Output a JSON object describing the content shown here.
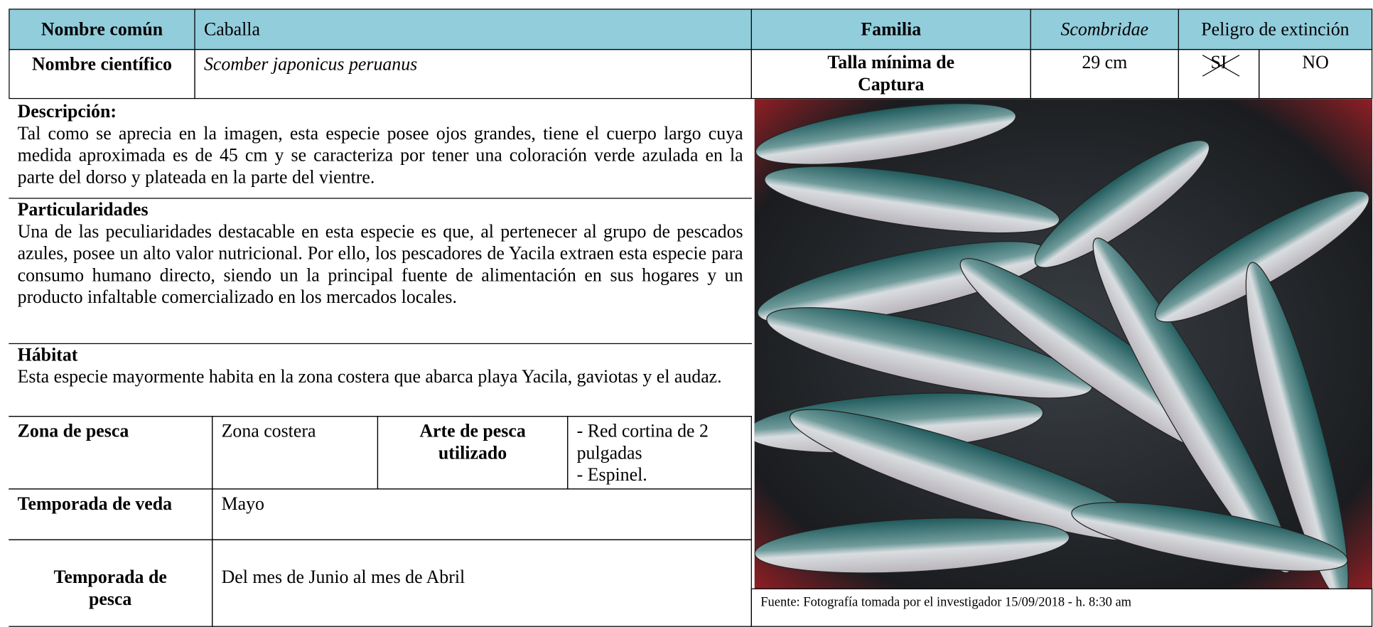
{
  "header": {
    "nombre_comun_label": "Nombre común",
    "nombre_comun": "Caballa",
    "familia_label": "Familia",
    "familia": "Scombridae",
    "peligro_label": "Peligro de extinción",
    "nombre_cientifico_label": "Nombre científico",
    "nombre_cientifico": "Scomber japonicus peruanus",
    "talla_label": "Talla mínima de Captura",
    "talla": "29 cm",
    "si": "SI",
    "no": "NO"
  },
  "sections": [
    {
      "title": "Descripción:",
      "text": "Tal como se aprecia en la imagen, esta especie posee ojos grandes, tiene el cuerpo largo cuya medida aproximada es de 45 cm y se caracteriza por tener una coloración verde azulada en la parte del dorso y  plateada en la parte del vientre."
    },
    {
      "title": "Particularidades",
      "text": "Una de las peculiaridades destacable en esta especie es que, al pertenecer al grupo de pescados azules, posee un alto valor nutricional. Por ello,  los pescadores de Yacila extraen esta especie para consumo humano directo, siendo un la principal fuente de alimentación en sus hogares y un producto infaltable comercializado en los mercados locales."
    },
    {
      "title": "Hábitat",
      "text": "Esta especie mayormente habita en la zona costera que abarca playa Yacila, gaviotas y el audaz."
    }
  ],
  "table": {
    "zona_label": "Zona de pesca",
    "zona": "Zona costera",
    "arte_label": "Arte de pesca utilizado",
    "arte": [
      "-  Red cortina de 2 pulgadas",
      "-  Espinel."
    ],
    "veda_label": "Temporada de veda",
    "veda": "Mayo",
    "pesca_label": "Temporada de pesca",
    "pesca": "Del mes de Junio al mes de Abril"
  },
  "caption": "Fuente: Fotografía tomada por el investigador 15/09/2018 - h. 8:30 am"
}
